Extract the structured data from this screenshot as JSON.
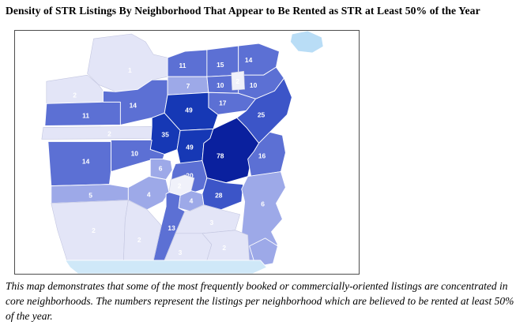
{
  "title": "Density of STR Listings By Neighborhood That Appear to Be Rented as STR at Least 50% of the Year",
  "caption": "This map demonstrates that some of the most frequently booked or commercially-oriented listings are concentrated in core neighborhoods. The numbers represent the listings per neighborhood which are believed to be rented at least 50% of the year.",
  "map": {
    "type": "choropleth",
    "subject": "San Francisco neighborhoods - STR listings rented as STR at least 50% of the year",
    "tier_colors": {
      "darkest": "#0a209e",
      "dark": "#1638b5",
      "mdark": "#3c55c8",
      "med": "#5c70d4",
      "light": "#9da9e8",
      "vlight": "#e3e5f7",
      "nwhite": "#f0f1fa",
      "water": "#cfe8f8",
      "island": "#b9ddf6"
    },
    "label_color": "#ffffff",
    "regions": [
      {
        "value": "1",
        "tier": "vlight"
      },
      {
        "value": "2",
        "tier": "vlight"
      },
      {
        "value": "11",
        "tier": "med"
      },
      {
        "value": "14",
        "tier": "med"
      },
      {
        "value": "11",
        "tier": "med"
      },
      {
        "value": "15",
        "tier": "med"
      },
      {
        "value": "14",
        "tier": "med"
      },
      {
        "value": "7",
        "tier": "light"
      },
      {
        "value": "10",
        "tier": "med"
      },
      {
        "value": "10",
        "tier": "med"
      },
      {
        "value": "17",
        "tier": "med"
      },
      {
        "value": "2",
        "tier": "nwhite"
      },
      {
        "value": "25",
        "tier": "mdark"
      },
      {
        "value": "49",
        "tier": "dark"
      },
      {
        "value": "2",
        "tier": "vlight"
      },
      {
        "value": "35",
        "tier": "dark"
      },
      {
        "value": "49",
        "tier": "dark"
      },
      {
        "value": "78",
        "tier": "darkest"
      },
      {
        "value": "10",
        "tier": "med"
      },
      {
        "value": "14",
        "tier": "med"
      },
      {
        "value": "16",
        "tier": "med"
      },
      {
        "value": "6",
        "tier": "light"
      },
      {
        "value": "5",
        "tier": "light"
      },
      {
        "value": "20",
        "tier": "med"
      },
      {
        "value": "2",
        "tier": "nwhite"
      },
      {
        "value": "4",
        "tier": "light"
      },
      {
        "value": "4",
        "tier": "light"
      },
      {
        "value": "28",
        "tier": "mdark"
      },
      {
        "value": "6",
        "tier": "light"
      },
      {
        "value": "13",
        "tier": "med"
      },
      {
        "value": "2",
        "tier": "vlight"
      },
      {
        "value": "2",
        "tier": "vlight"
      },
      {
        "value": "3",
        "tier": "vlight"
      },
      {
        "value": "3",
        "tier": "vlight"
      },
      {
        "value": "2",
        "tier": "vlight"
      },
      {
        "value": "",
        "tier": "light"
      },
      {
        "value": "",
        "tier": "water"
      },
      {
        "value": "",
        "tier": "island"
      }
    ]
  }
}
